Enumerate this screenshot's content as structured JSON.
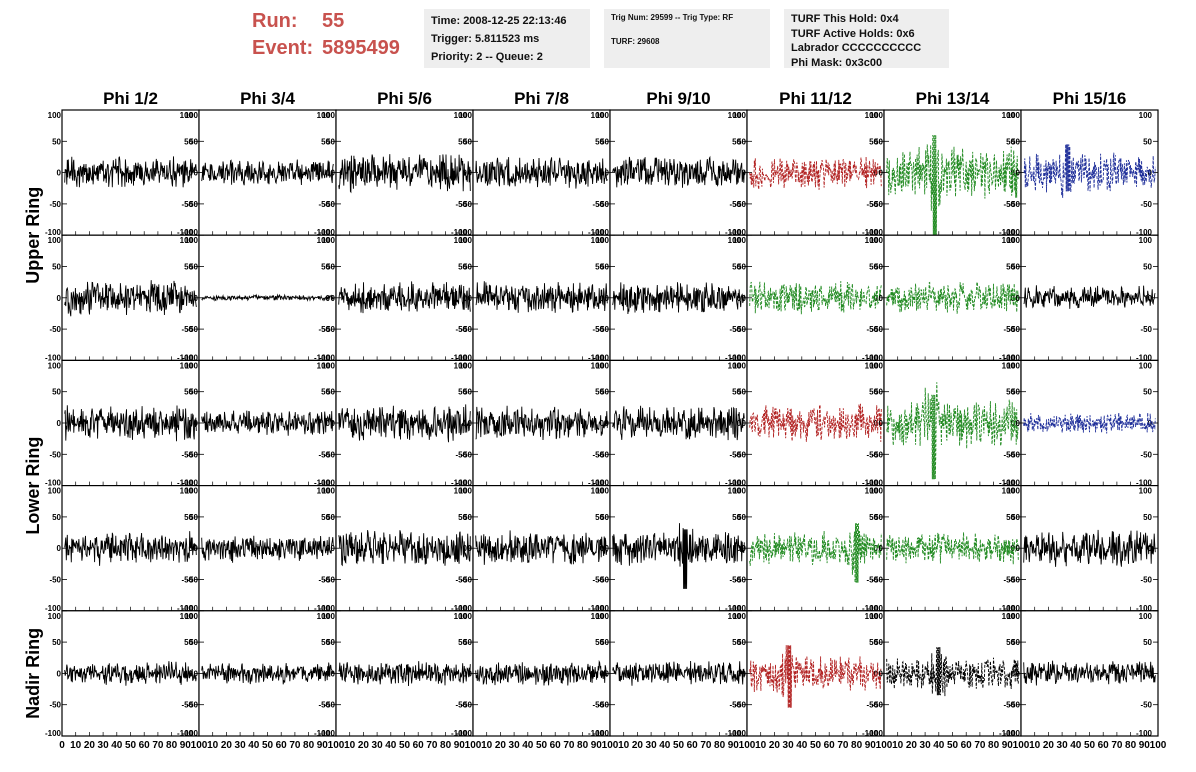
{
  "header": {
    "run_label": "Run:",
    "run_value": "55",
    "event_label": "Event:",
    "event_value": "5895499"
  },
  "info_boxes": {
    "time": "Time: 2008-12-25 22:13:46",
    "trigger": "Trigger: 5.811523 ms",
    "priority": "Priority: 2 -- Queue: 2",
    "trig_num": "Trig Num: 29599 -- Trig Type: RF",
    "turf": "TURF: 29608",
    "turf_hold": "TURF This Hold: 0x4",
    "turf_active": "TURF Active Holds: 0x6",
    "labrador": "Labrador CCCCCCCCCC",
    "phi_mask": "Phi Mask: 0x3c00"
  },
  "colors": {
    "header_red": "#c8524e",
    "trace_black": "#000000",
    "trace_red": "#b22222",
    "trace_green": "#228b22",
    "trace_blue": "#1f2f9a",
    "box_background": "#eeeeee"
  },
  "chart_data": {
    "type": "line",
    "columns": [
      "Phi 1/2",
      "Phi 3/4",
      "Phi 5/6",
      "Phi 7/8",
      "Phi 9/10",
      "Phi 11/12",
      "Phi 13/14",
      "Phi 15/16"
    ],
    "rows": [
      {
        "label": "Upper Ring",
        "panels": 2
      },
      {
        "label": "Lower Ring",
        "panels": 2
      },
      {
        "label": "Nadir Ring",
        "panels": 1
      }
    ],
    "xlim": [
      0,
      100
    ],
    "ylim": [
      -100,
      100
    ],
    "x_ticks": [
      "0",
      "10",
      "20",
      "30",
      "40",
      "50",
      "60",
      "70",
      "80",
      "90",
      "100"
    ],
    "y_ticks": [
      "100",
      "50",
      "0",
      "-50",
      "-100"
    ],
    "trace_colors": [
      [
        "black",
        "black",
        "black",
        "black",
        "black",
        "red",
        "green",
        "blue"
      ],
      [
        "black",
        "black",
        "black",
        "black",
        "black",
        "green",
        "green",
        "black"
      ],
      [
        "black",
        "black",
        "black",
        "black",
        "black",
        "red",
        "green",
        "blue"
      ],
      [
        "black",
        "black",
        "black",
        "black",
        "black",
        "green",
        "green",
        "black"
      ],
      [
        "black",
        "black",
        "black",
        "black",
        "black",
        "red",
        "black",
        "black"
      ]
    ],
    "trace_amplitudes": [
      [
        18,
        15,
        22,
        18,
        18,
        20,
        30,
        22
      ],
      [
        20,
        3,
        18,
        18,
        18,
        20,
        18,
        14
      ],
      [
        20,
        14,
        22,
        20,
        20,
        22,
        28,
        12
      ],
      [
        20,
        16,
        20,
        20,
        20,
        20,
        18,
        22
      ],
      [
        14,
        12,
        14,
        14,
        14,
        22,
        18,
        14
      ]
    ],
    "trace_spikes": [
      [
        null,
        null,
        null,
        null,
        null,
        null,
        {
          "x": 37,
          "min": -100,
          "max": 60
        },
        {
          "x": 34,
          "min": -30,
          "max": 45
        }
      ],
      [
        null,
        null,
        null,
        null,
        null,
        null,
        null,
        null
      ],
      [
        null,
        null,
        null,
        null,
        null,
        null,
        {
          "x": 36,
          "min": -90,
          "max": 45
        },
        null
      ],
      [
        null,
        null,
        null,
        null,
        {
          "x": 55,
          "min": -65,
          "max": 30
        },
        {
          "x": 80,
          "min": -55,
          "max": 40
        },
        null,
        null
      ],
      [
        null,
        null,
        null,
        null,
        null,
        {
          "x": 31,
          "min": -55,
          "max": 45
        },
        {
          "x": 40,
          "min": -35,
          "max": 42
        },
        null
      ]
    ]
  }
}
